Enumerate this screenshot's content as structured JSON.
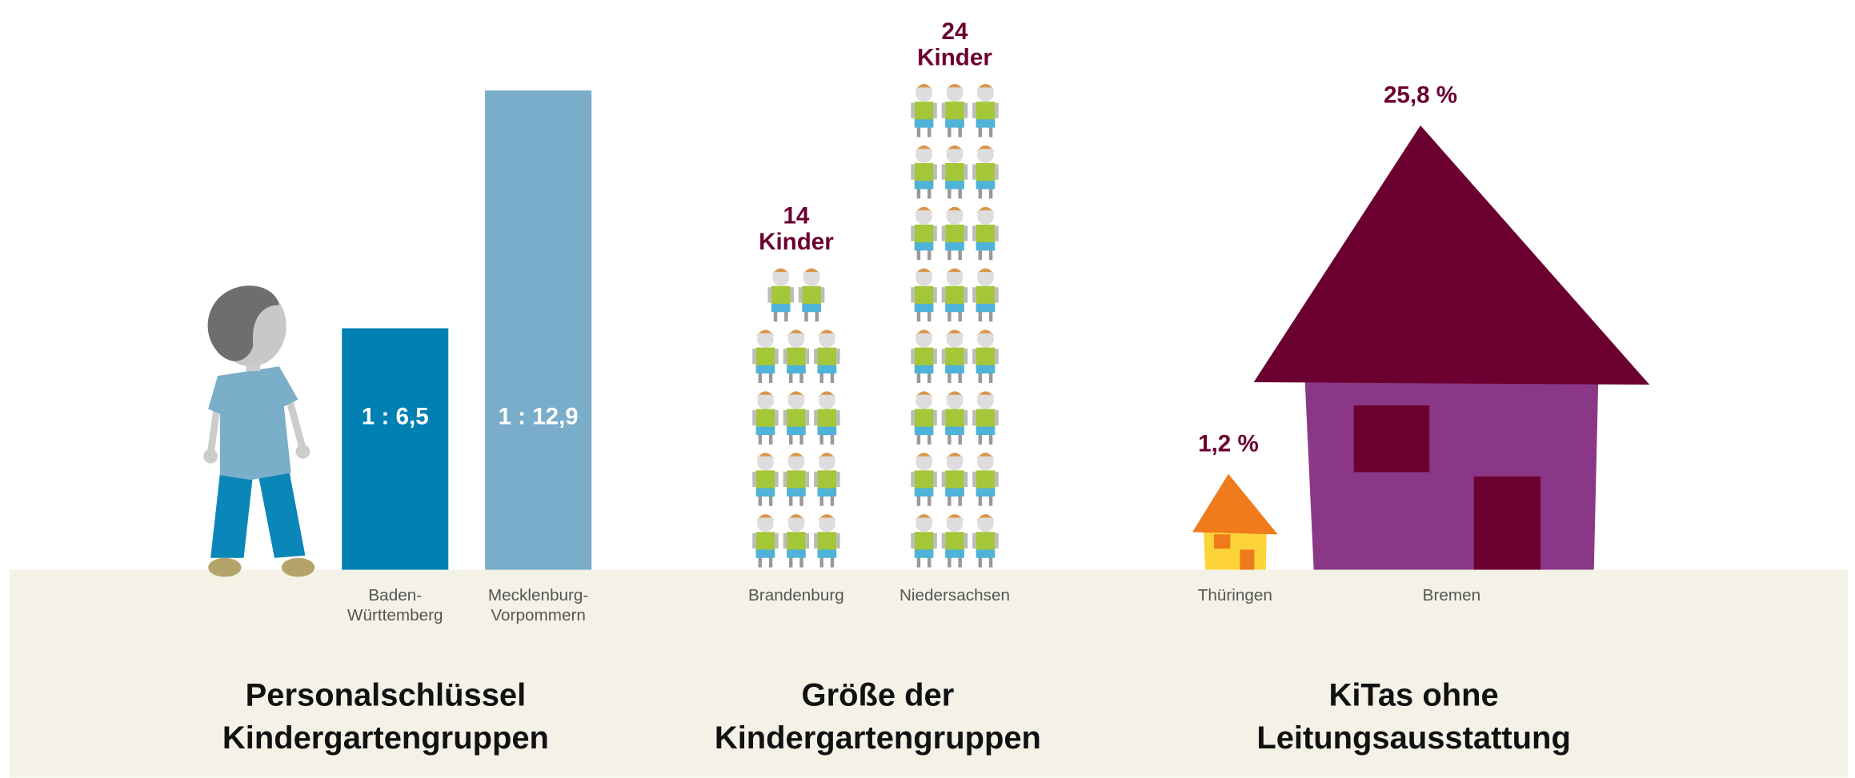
{
  "chart_data": [
    {
      "type": "bar",
      "title": [
        "Personalschlüssel",
        "Kindergartengruppen"
      ],
      "categories": [
        "Baden-Württemberg",
        "Mecklenburg-Vorpommern"
      ],
      "values": [
        6.5,
        12.9
      ],
      "value_labels": [
        "1 : 6,5",
        "1 : 12,9"
      ],
      "colors": [
        "#0080b2",
        "#79adc9"
      ],
      "ylim": [
        0,
        14
      ]
    },
    {
      "type": "pictogram",
      "title": [
        "Größe der",
        "Kindergartengruppen"
      ],
      "categories": [
        "Brandenburg",
        "Niedersachsen"
      ],
      "values": [
        14,
        24
      ],
      "value_labels": [
        "14 Kinder",
        "24 Kinder"
      ]
    },
    {
      "type": "house",
      "title": [
        "KiTas ohne",
        "Leitungsausstattung"
      ],
      "categories": [
        "Thüringen",
        "Bremen"
      ],
      "values": [
        1.2,
        25.8
      ],
      "value_labels": [
        "1,2 %",
        "25,8 %"
      ],
      "colors": [
        {
          "roof": "#ef7b1c",
          "body": "#fcd43a",
          "window": "#ef7b1c"
        },
        {
          "roof": "#6b0030",
          "body": "#8a3787",
          "window": "#6b0030"
        }
      ]
    }
  ]
}
